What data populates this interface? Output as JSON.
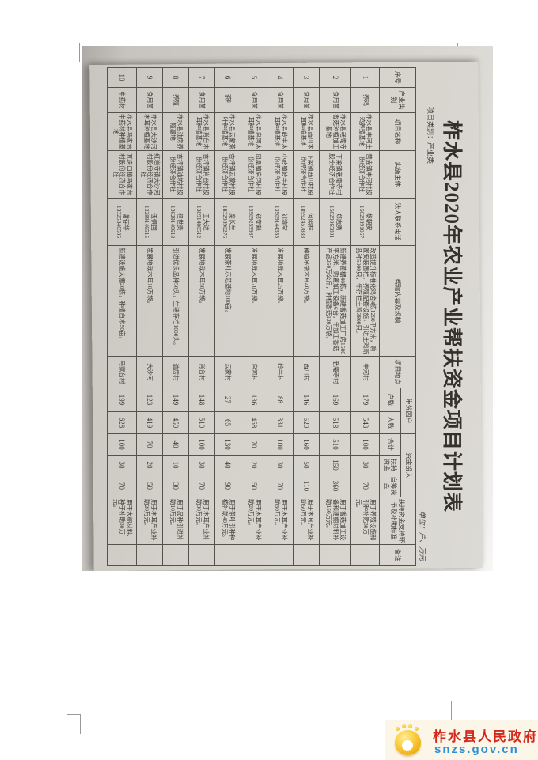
{
  "page": {
    "title": "柞水县2020年农业产业帮扶资金项目计划表",
    "category_note": "项目类别：产业类",
    "unit_note": "单位：户、万元"
  },
  "table": {
    "headers": {
      "no": "序号",
      "category": "产业类别",
      "project": "项目名称",
      "entity": "实施主体",
      "contact": "法人联系电话",
      "content": "帮建内容及规模",
      "location": "项目地点",
      "poor_group": "带贫困户",
      "households": "户数",
      "people": "人数",
      "fund_group": "资金投入",
      "total": "合计",
      "support_fund": "扶持资金",
      "self_fund": "自筹资金",
      "usage": "扶持资金支持环节及补助标准",
      "remark": "备注"
    },
    "rows": [
      {
        "no": "1",
        "category": "养鸡",
        "project": "柞水县丰河土鸡养殖基地",
        "entity": "营盘镇丰河村股份经济合作社",
        "contact_name": "黎朝安",
        "phone": "15029891067",
        "content": "改造提升标准化鸡舍4栋1200平方米，购置安装围栏、养殖配套设施，引进土鸡新品种5000只，年存栏土鸡3800只。",
        "location": "丰河村",
        "households": "179",
        "people": "543",
        "total": "100",
        "support_fund": "30",
        "self_fund": "70",
        "usage": "用于养殖设施和引种补贴30万元。",
        "remark": ""
      },
      {
        "no": "2",
        "category": "食用菌",
        "project": "柞水县老庵寺香菇种植加工基地",
        "entity": "下梁镇老庵寺村股份经济合作社",
        "contact_name": "郑志勇",
        "phone": "15829965891",
        "content": "新建养菌棚40栋，新建香菇加工厂房1600平方米，购置加工设备6台，年加工香菇产品250万公斤，种植香菇120万袋。",
        "location": "老庵寺村",
        "households": "169",
        "people": "518",
        "total": "510",
        "support_fund": "150",
        "self_fund": "360",
        "usage": "用于香菇加工设备和建棚材料补助150万元。",
        "remark": ""
      },
      {
        "no": "3",
        "category": "食用菌",
        "project": "柞水县西川木耳种植基地",
        "entity": "下梁镇西川村股份经济合作社",
        "contact_name": "何照林",
        "phone": "18992457833",
        "content": "种植吊袋木耳40万袋。",
        "location": "西川村",
        "households": "146",
        "people": "520",
        "total": "160",
        "support_fund": "50",
        "self_fund": "110",
        "usage": "用于木耳产业补助50万元。",
        "remark": ""
      },
      {
        "no": "4",
        "category": "食用菌",
        "project": "柞水县岭丰木耳种植基地",
        "entity": "小岭镇岭丰村股份经济合作社",
        "contact_name": "刘清莹",
        "phone": "13909144355",
        "content": "发展地栽木耳25万袋。",
        "location": "岭丰村",
        "households": "88",
        "people": "331",
        "total": "100",
        "support_fund": "30",
        "self_fund": "70",
        "usage": "用于木耳产业补助30万元。",
        "remark": ""
      },
      {
        "no": "5",
        "category": "食用菌",
        "project": "柞水县皂河木耳种植基地",
        "entity": "凤凰镇皂河村股份经济合作社",
        "contact_name": "郑安魁",
        "phone": "15909255937",
        "content": "发展地栽木耳70万袋。",
        "location": "皂河村",
        "households": "136",
        "people": "458",
        "total": "70",
        "support_fund": "20",
        "self_fund": "50",
        "usage": "用于木耳产业补助20万元。",
        "remark": ""
      },
      {
        "no": "6",
        "category": "茶叶",
        "project": "柞水县云蒙茶叶种植基地",
        "entity": "杏坪镇云蒙村股份经济合作社",
        "contact_name": "糜长兰",
        "phone": "18329890276",
        "content": "发展茶叶示范基地100亩。",
        "location": "云蒙村",
        "households": "27",
        "people": "65",
        "total": "130",
        "support_fund": "40",
        "self_fund": "90",
        "usage": "用于茶叶引种种植补助40万元。",
        "remark": ""
      },
      {
        "no": "7",
        "category": "食用菌",
        "project": "柞水县肖台木耳种植基地",
        "entity": "杏坪镇肖台村股份经济合作社",
        "contact_name": "王大进",
        "phone": "13891400512",
        "content": "发展地栽木耳50万袋。",
        "location": "肖台村",
        "households": "148",
        "people": "510",
        "total": "100",
        "support_fund": "30",
        "self_fund": "70",
        "usage": "用于木耳产业补助30万元。",
        "remark": ""
      },
      {
        "no": "8",
        "category": "养殖",
        "project": "柞水县油房养殖基地",
        "entity": "杏坪镇油坊村股份经济合作社",
        "contact_name": "程世贵",
        "phone": "13629140618",
        "content": "引进优良品种50头，生猪存栏1000头。",
        "location": "油房村",
        "households": "149",
        "people": "450",
        "total": "40",
        "support_fund": "10",
        "self_fund": "30",
        "usage": "用于品种引进补助10万元。",
        "remark": ""
      },
      {
        "no": "9",
        "category": "食用菌",
        "project": "柞水县大沙河木耳种植基地",
        "entity": "红岩寺镇大沙河村股份经济合作社",
        "contact_name": "伍俱国",
        "phone": "13289146515",
        "content": "发展地栽木耳10万袋。",
        "location": "大沙河",
        "households": "123",
        "people": "419",
        "total": "70",
        "support_fund": "20",
        "self_fund": "50",
        "usage": "用于木耳产业补助20万元。",
        "remark": ""
      },
      {
        "no": "10",
        "category": "中药材",
        "project": "柞水县马家台中药材种植基地",
        "entity": "瓦房口镇马家台村股份经济合作社",
        "contact_name": "谢存华",
        "phone": "13325346595",
        "content": "新建设施大棚20栋，种植白术50亩。",
        "location": "马家台村",
        "households": "199",
        "people": "628",
        "total": "100",
        "support_fund": "30",
        "self_fund": "70",
        "usage": "用于大棚材料、种子补助30万元。",
        "remark": ""
      }
    ]
  },
  "logo": {
    "name": "柞水县人民政府",
    "url": "snzs.gov.cn"
  },
  "colors": {
    "gov_red": "#d3281c",
    "gov_blue": "#2e8fd5",
    "logo_gold": "#f2b317",
    "paper": "#d5d2cc",
    "logo_panel": "#fcf6e9"
  }
}
